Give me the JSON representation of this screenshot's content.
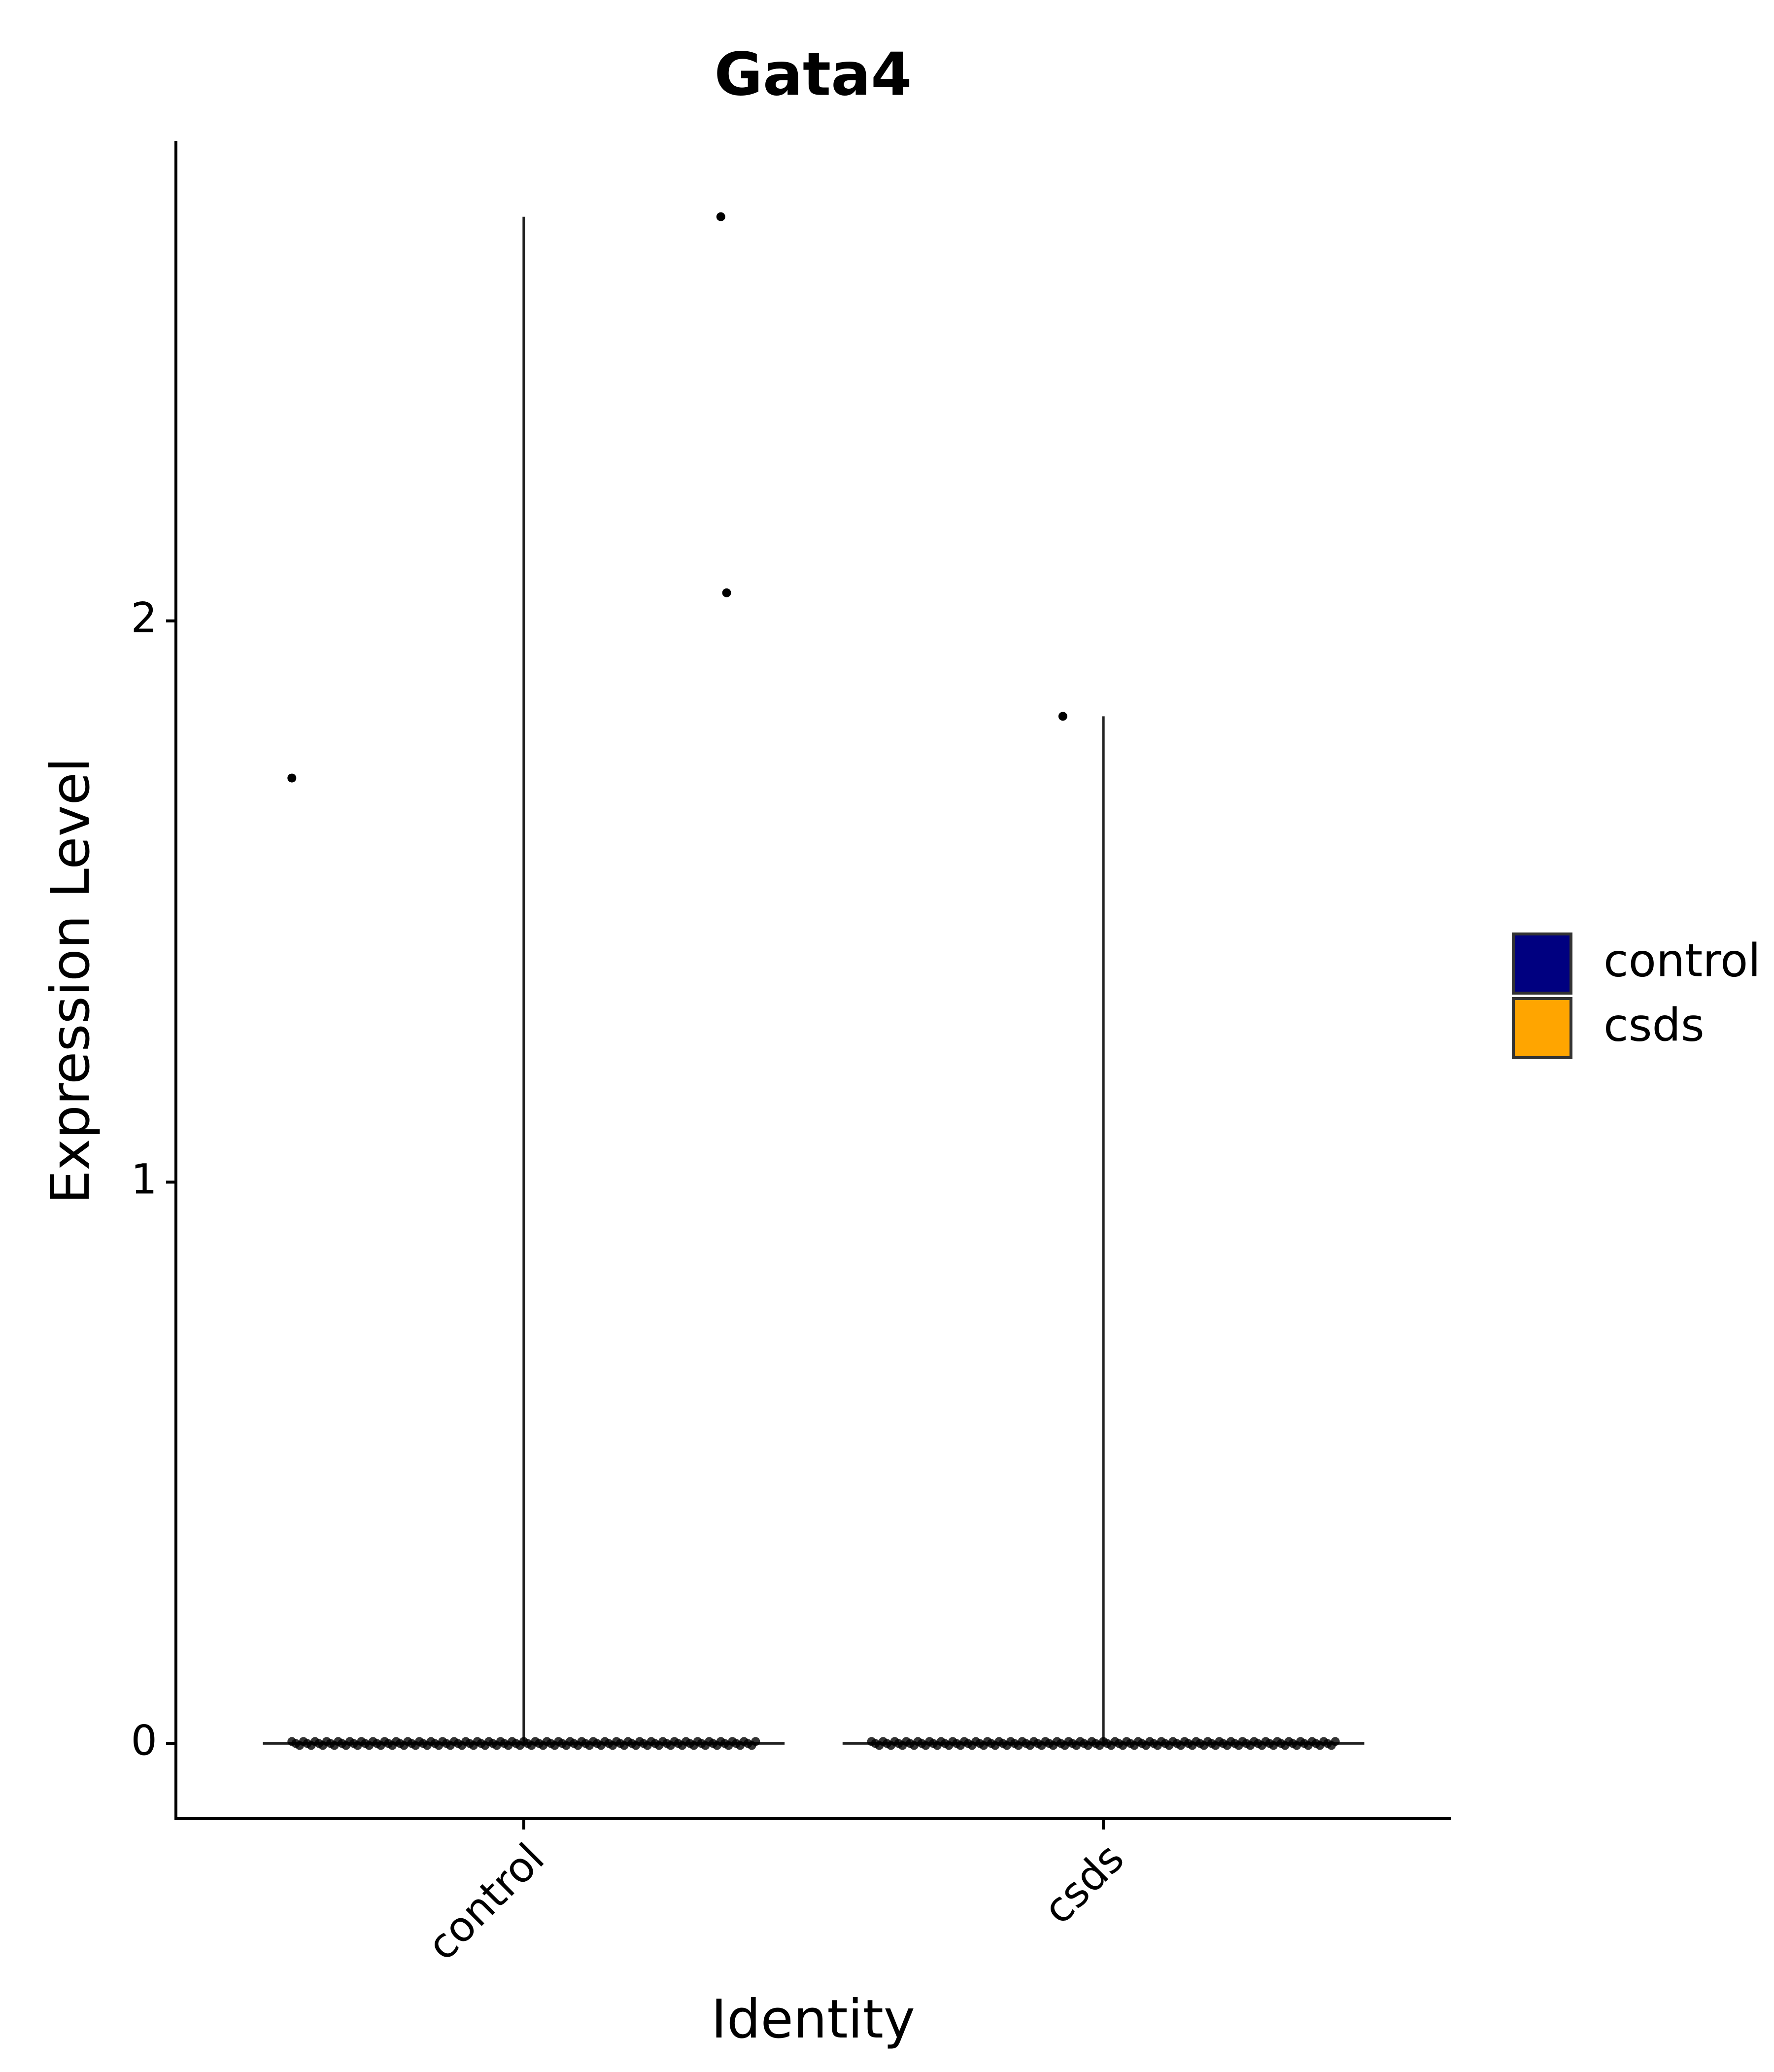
{
  "chart_data": {
    "type": "violin",
    "title": "Gata4",
    "x_label": "Identity",
    "y_label": "Expression Level",
    "categories": [
      "control",
      "csds"
    ],
    "series": [
      {
        "name": "control",
        "color": "#000080",
        "min": 0,
        "max": 2.72,
        "points": [
          1.72,
          2.05,
          2.72
        ]
      },
      {
        "name": "csds",
        "color": "#ffa500",
        "min": 0,
        "max": 1.83,
        "points": [
          1.83
        ]
      }
    ],
    "ylim": [
      -0.134,
      2.855
    ],
    "yticks": [
      0,
      1,
      2
    ],
    "grid": false,
    "legend_position": "right"
  }
}
